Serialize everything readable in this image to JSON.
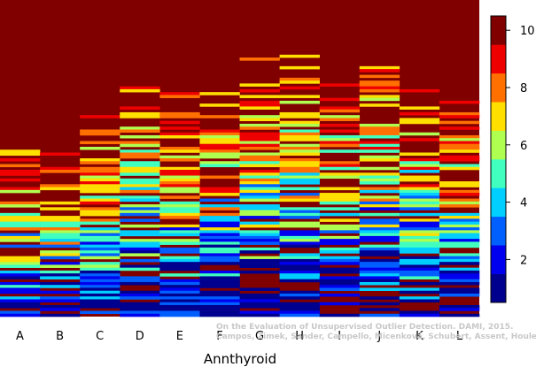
{
  "chart_data": {
    "type": "heatmap",
    "title": "",
    "xlabel": "Annthyroid",
    "ylabel": "",
    "categories": [
      "A",
      "B",
      "C",
      "D",
      "E",
      "F",
      "G",
      "H",
      "I",
      "J",
      "K",
      "L"
    ],
    "colorbar": {
      "range": [
        0.5,
        10.5
      ],
      "ticks": [
        2,
        4,
        6,
        8,
        10
      ],
      "levels": [
        {
          "value": 1,
          "color": "#00008f"
        },
        {
          "value": 2,
          "color": "#0000ef"
        },
        {
          "value": 3,
          "color": "#005fff"
        },
        {
          "value": 4,
          "color": "#00cfff"
        },
        {
          "value": 5,
          "color": "#40ffbf"
        },
        {
          "value": 6,
          "color": "#afff50"
        },
        {
          "value": 7,
          "color": "#ffdf00"
        },
        {
          "value": 8,
          "color": "#ff7000"
        },
        {
          "value": 9,
          "color": "#ef0000"
        },
        {
          "value": 10,
          "color": "#800000"
        }
      ]
    },
    "column_onset": [
      0.53,
      0.56,
      0.43,
      0.35,
      0.37,
      0.36,
      0.25,
      0.24,
      0.31,
      0.27,
      0.32,
      0.39
    ],
    "background_value": 10,
    "watermark": [
      "On the Evaluation of Unsupervised Outlier Detection. DAMI, 2015.",
      "Campos, Zimek, Sander, Campello, Micenková, Schubert, Assent, Houle"
    ]
  }
}
